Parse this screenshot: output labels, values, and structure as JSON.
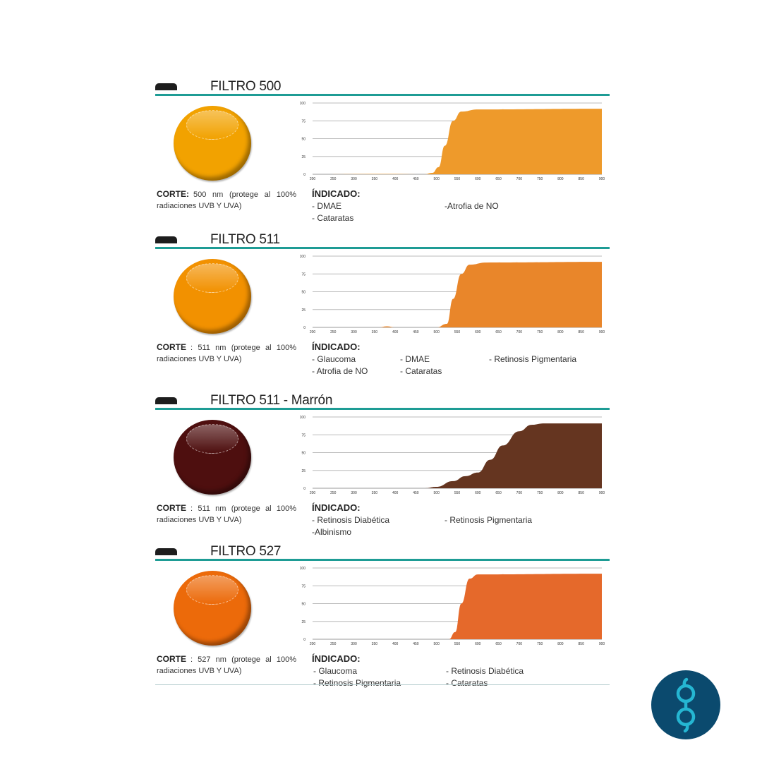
{
  "colors": {
    "rule": "#1e9c95",
    "logo_bg": "#0b4a6e",
    "logo_fg": "#25b6d2"
  },
  "chart_axis": {
    "x_ticks": [
      200,
      250,
      300,
      350,
      400,
      450,
      500,
      550,
      600,
      650,
      700,
      750,
      800,
      850,
      900
    ],
    "y_ticks": [
      0,
      25,
      50,
      75,
      100
    ],
    "xlim": [
      200,
      900
    ],
    "ylim": [
      0,
      100
    ]
  },
  "sections": [
    {
      "title": "FILTRO 500",
      "lens_color": "#f2a200",
      "corte_label": "CORTE:",
      "corte_text": "500 nm (protege al 100% radiaciones UVB Y UVA)",
      "indicado_label": "ÍNDICADO:",
      "columns": [
        [
          "- DMAE",
          "- Cataratas"
        ],
        [
          "-Atrofia de NO"
        ]
      ],
      "col_offsets": [
        222,
        410
      ],
      "chart_data": {
        "type": "area",
        "color": "#ee9a2b",
        "x": [
          200,
          380,
          470,
          490,
          505,
          520,
          540,
          560,
          600,
          900
        ],
        "y": [
          0,
          0.5,
          0,
          2,
          10,
          40,
          75,
          88,
          91,
          92
        ]
      }
    },
    {
      "title": "FILTRO 511",
      "lens_color": "#f29100",
      "corte_label": "CORTE",
      "corte_text": ": 511 nm (protege al 100% radiaciones UVB Y UVA)",
      "indicado_label": "ÍNDICADO:",
      "columns": [
        [
          "- Glaucoma",
          "- Atrofia de NO"
        ],
        [
          "- DMAE",
          "- Cataratas"
        ],
        [
          "- Retinosis Pigmentaria"
        ]
      ],
      "col_offsets": [
        222,
        347,
        473
      ],
      "chart_data": {
        "type": "area",
        "color": "#e9862a",
        "x": [
          200,
          360,
          380,
          400,
          500,
          525,
          540,
          560,
          580,
          620,
          900
        ],
        "y": [
          0,
          0,
          1.5,
          0,
          0,
          5,
          40,
          75,
          88,
          91,
          92
        ]
      }
    },
    {
      "title": "FILTRO 511 - Marrón",
      "lens_color": "#4e0f0f",
      "corte_label": "CORTE",
      "corte_text": ": 511 nm (protege al 100% radiaciones UVB Y UVA)",
      "indicado_label": "ÍNDICADO:",
      "columns": [
        [
          "- Retinosis Diabética",
          "-Albinismo"
        ],
        [
          "- Retinosis Pigmentaria"
        ]
      ],
      "col_offsets": [
        222,
        410
      ],
      "chart_data": {
        "type": "area",
        "color": "#653520",
        "x": [
          200,
          470,
          500,
          540,
          570,
          600,
          630,
          660,
          700,
          730,
          760,
          900
        ],
        "y": [
          0,
          0,
          2,
          10,
          17,
          22,
          40,
          60,
          80,
          89,
          91,
          91
        ]
      }
    },
    {
      "title": "FILTRO 527",
      "lens_color": "#ec6a0a",
      "corte_label": "CORTE",
      "corte_text": ": 527 nm (protege al 100% radiaciones UVB Y UVA)",
      "indicado_label": "ÍNDICADO:",
      "columns": [
        [
          "- Glaucoma",
          "- Retinosis Pigmentaria"
        ],
        [
          "- Retinosis Diabética",
          "- Cataratas"
        ]
      ],
      "col_offsets": [
        224,
        412
      ],
      "chart_data": {
        "type": "area",
        "color": "#e5692b",
        "x": [
          200,
          530,
          545,
          560,
          580,
          600,
          900
        ],
        "y": [
          0,
          0,
          10,
          50,
          85,
          91,
          92
        ]
      }
    }
  ]
}
